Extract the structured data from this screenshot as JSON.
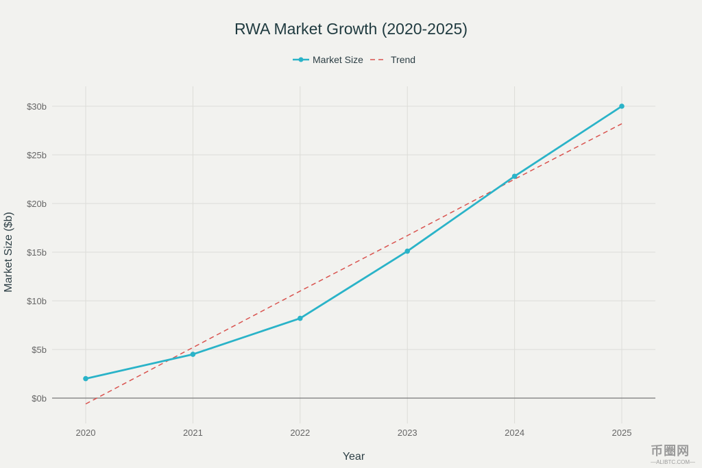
{
  "chart_data": {
    "type": "line",
    "title": "RWA Market Growth (2020-2025)",
    "xlabel": "Year",
    "ylabel": "Market Size ($b)",
    "x": [
      "2020",
      "2021",
      "2022",
      "2023",
      "2024",
      "2025"
    ],
    "yticks": [
      0,
      5,
      10,
      15,
      20,
      25,
      30
    ],
    "ytick_labels": [
      "$0b",
      "$5b",
      "$10b",
      "$15b",
      "$20b",
      "$25b",
      "$30b"
    ],
    "ylim": [
      -2.6,
      32
    ],
    "grid": true,
    "legend_position": "top-center",
    "series": [
      {
        "name": "Market Size",
        "style": "solid-markers",
        "color": "#2ab3c8",
        "values": [
          2.0,
          4.5,
          8.2,
          15.1,
          22.8,
          30.0
        ]
      },
      {
        "name": "Trend",
        "style": "dashed",
        "color": "#d9534f",
        "values": [
          -0.6,
          5.2,
          11.0,
          16.7,
          22.5,
          28.2
        ]
      }
    ]
  },
  "watermark": {
    "main": "币圈网",
    "sub": "—ALIBTC.COM—"
  }
}
